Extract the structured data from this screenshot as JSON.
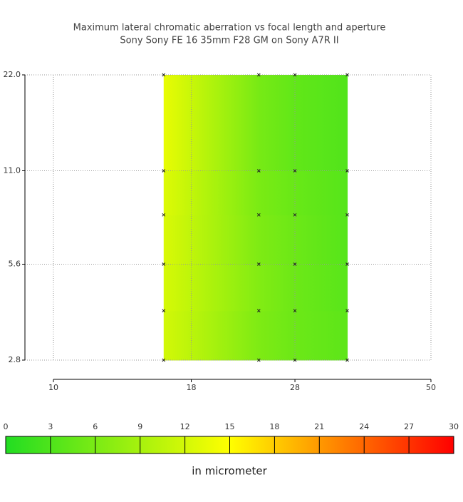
{
  "chart_data": {
    "type": "heatmap",
    "title": "Maximum lateral chromatic aberration vs focal length and aperture",
    "subtitle": "Sony Sony FE 16 35mm F28 GM on Sony A7R II",
    "x": [
      16,
      24,
      28,
      35
    ],
    "y": [
      2.8,
      4,
      5.6,
      8,
      11,
      22
    ],
    "z": [
      [
        12,
        6,
        5,
        4
      ],
      [
        12,
        6.5,
        5,
        4
      ],
      [
        12.5,
        6.5,
        5,
        3.5
      ],
      [
        12.5,
        6,
        5,
        3.5
      ],
      [
        13,
        6,
        4.5,
        3.5
      ],
      [
        14,
        5.5,
        4,
        3
      ]
    ],
    "xlim": [
      10,
      50
    ],
    "xticks": [
      10,
      18,
      28,
      50
    ],
    "x_log": true,
    "ylim": [
      2.8,
      22
    ],
    "yticks": [
      {
        "value": 2.8,
        "label": "2.8"
      },
      {
        "value": 5.6,
        "label": "5.6"
      },
      {
        "value": 11,
        "label": "11.0"
      },
      {
        "value": 22,
        "label": "22.0"
      }
    ],
    "y_log": true,
    "grid": true,
    "colorbar": {
      "label": "in micrometer",
      "lim": [
        0,
        30
      ],
      "ticks": [
        0,
        3,
        6,
        9,
        12,
        15,
        18,
        21,
        24,
        27,
        30
      ],
      "colors": [
        "#22dd22",
        "#ffff00",
        "#ff0000"
      ]
    }
  }
}
